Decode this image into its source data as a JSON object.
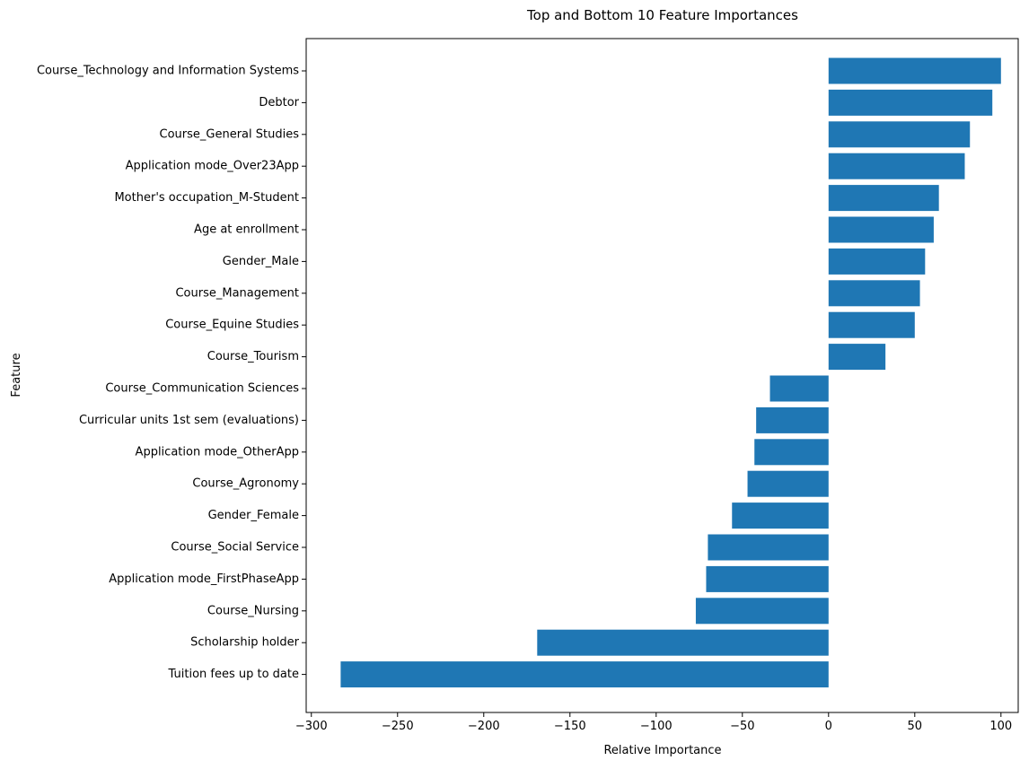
{
  "chart_data": {
    "type": "bar",
    "orientation": "horizontal",
    "title": "Top and Bottom 10 Feature Importances",
    "xlabel": "Relative Importance",
    "ylabel": "Feature",
    "xlim": [
      -303,
      110
    ],
    "xticks": [
      -300,
      -250,
      -200,
      -150,
      -100,
      -50,
      0,
      50,
      100
    ],
    "xtick_labels": [
      "−300",
      "−250",
      "−200",
      "−150",
      "−100",
      "−50",
      "0",
      "50",
      "100"
    ],
    "grid": false,
    "legend": "none",
    "bar_color": "#1f77b4",
    "categories": [
      "Course_Technology and Information Systems",
      "Debtor",
      "Course_General Studies",
      "Application mode_Over23App",
      "Mother's occupation_M-Student",
      "Age at enrollment",
      "Gender_Male",
      "Course_Management",
      "Course_Equine Studies",
      "Course_Tourism",
      "Course_Communication Sciences",
      "Curricular units 1st sem (evaluations)",
      "Application mode_OtherApp",
      "Course_Agronomy",
      "Gender_Female",
      "Course_Social Service",
      "Application mode_FirstPhaseApp",
      "Course_Nursing",
      "Scholarship holder",
      "Tuition fees up to date"
    ],
    "values": [
      100,
      95,
      82,
      79,
      64,
      61,
      56,
      53,
      50,
      33,
      -34,
      -42,
      -43,
      -47,
      -56,
      -70,
      -71,
      -77,
      -169,
      -283
    ]
  }
}
